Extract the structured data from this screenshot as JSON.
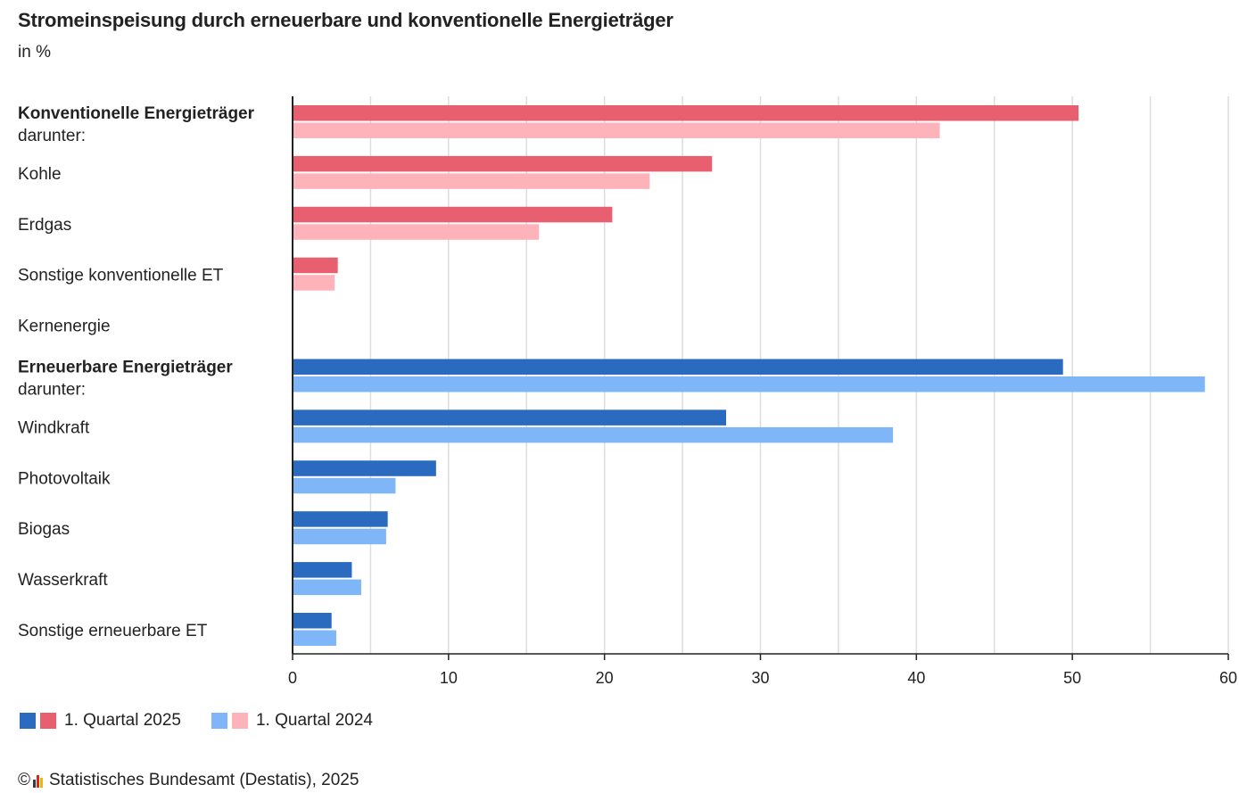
{
  "header": {
    "title": "Stromeinspeisung durch erneuerbare und konventionelle Energieträger",
    "unit": "in %"
  },
  "legend": {
    "q2025": {
      "label": "1. Quartal 2025",
      "colors": [
        "#2a6bbf",
        "#e8606f"
      ]
    },
    "q2024": {
      "label": "1. Quartal 2024",
      "colors": [
        "#7fb6f7",
        "#fdb3b9"
      ]
    }
  },
  "footer": {
    "copyright": "©",
    "source": "Statistisches Bundesamt (Destatis), 2025"
  },
  "colors": {
    "conv_2025": "#e8606f",
    "conv_2024": "#fdb3b9",
    "ren_2025": "#2a6bbf",
    "ren_2024": "#7fb6f7",
    "grid": "#dddddd",
    "axis": "#222222"
  },
  "chart_data": {
    "type": "bar",
    "orientation": "horizontal",
    "title": "Stromeinspeisung durch erneuerbare und konventionelle Energieträger",
    "subtitle": "in %",
    "xlim": [
      0,
      60
    ],
    "xticks": [
      0,
      10,
      20,
      30,
      40,
      50,
      60
    ],
    "grid": true,
    "legend_position": "bottom-left",
    "categories": [
      {
        "label": "Konventionelle Energieträger",
        "sublabel": "darunter:",
        "bold": true,
        "group": "conv"
      },
      {
        "label": "Kohle",
        "group": "conv"
      },
      {
        "label": "Erdgas",
        "group": "conv"
      },
      {
        "label": "Sonstige konventionelle ET",
        "group": "conv"
      },
      {
        "label": "Kernenergie",
        "group": "conv"
      },
      {
        "label": "Erneuerbare Energieträger",
        "sublabel": "darunter:",
        "bold": true,
        "group": "ren"
      },
      {
        "label": "Windkraft",
        "group": "ren"
      },
      {
        "label": "Photovoltaik",
        "group": "ren"
      },
      {
        "label": "Biogas",
        "group": "ren"
      },
      {
        "label": "Wasserkraft",
        "group": "ren"
      },
      {
        "label": "Sonstige erneuerbare ET",
        "group": "ren"
      }
    ],
    "series": [
      {
        "name": "1. Quartal 2025",
        "values": [
          50.4,
          26.9,
          20.5,
          2.9,
          0,
          49.4,
          27.8,
          9.2,
          6.1,
          3.8,
          2.5
        ]
      },
      {
        "name": "1. Quartal 2024",
        "values": [
          41.5,
          22.9,
          15.8,
          2.7,
          0,
          58.5,
          38.5,
          6.6,
          6.0,
          4.4,
          2.8
        ]
      }
    ]
  }
}
